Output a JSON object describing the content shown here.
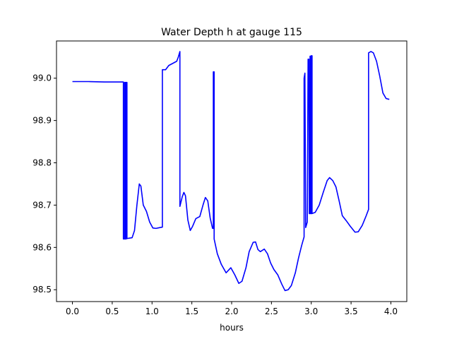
{
  "chart_data": {
    "type": "line",
    "title": "Water Depth h at gauge 115",
    "xlabel": "hours",
    "ylabel": "",
    "xlim": [
      -0.2,
      4.2
    ],
    "ylim": [
      98.472,
      99.088
    ],
    "x_ticks": [
      0.0,
      0.5,
      1.0,
      1.5,
      2.0,
      2.5,
      3.0,
      3.5,
      4.0
    ],
    "x_tick_labels": [
      "0.0",
      "0.5",
      "1.0",
      "1.5",
      "2.0",
      "2.5",
      "3.0",
      "3.5",
      "4.0"
    ],
    "y_ticks": [
      98.5,
      98.6,
      98.7,
      98.8,
      98.9,
      99.0
    ],
    "y_tick_labels": [
      "98.5",
      "98.6",
      "98.7",
      "98.8",
      "98.9",
      "99.0"
    ],
    "grid": false,
    "legend": "none",
    "series": [
      {
        "color": "#0000ff",
        "points": [
          [
            0.0,
            98.992
          ],
          [
            0.2,
            98.992
          ],
          [
            0.4,
            98.991
          ],
          [
            0.64,
            98.991
          ],
          [
            0.64,
            98.62
          ],
          [
            0.655,
            98.62
          ],
          [
            0.655,
            98.99
          ],
          [
            0.665,
            98.99
          ],
          [
            0.665,
            98.62
          ],
          [
            0.675,
            98.62
          ],
          [
            0.675,
            98.99
          ],
          [
            0.685,
            98.99
          ],
          [
            0.685,
            98.621
          ],
          [
            0.75,
            98.623
          ],
          [
            0.78,
            98.64
          ],
          [
            0.81,
            98.7
          ],
          [
            0.84,
            98.75
          ],
          [
            0.86,
            98.745
          ],
          [
            0.89,
            98.7
          ],
          [
            0.93,
            98.685
          ],
          [
            0.97,
            98.66
          ],
          [
            1.01,
            98.646
          ],
          [
            1.05,
            98.645
          ],
          [
            1.1,
            98.647
          ],
          [
            1.13,
            98.648
          ],
          [
            1.13,
            99.02
          ],
          [
            1.17,
            99.02
          ],
          [
            1.21,
            99.03
          ],
          [
            1.26,
            99.035
          ],
          [
            1.31,
            99.04
          ],
          [
            1.33,
            99.05
          ],
          [
            1.35,
            99.063
          ],
          [
            1.35,
            98.697
          ],
          [
            1.38,
            98.72
          ],
          [
            1.4,
            98.73
          ],
          [
            1.42,
            98.722
          ],
          [
            1.45,
            98.665
          ],
          [
            1.48,
            98.64
          ],
          [
            1.51,
            98.65
          ],
          [
            1.55,
            98.668
          ],
          [
            1.6,
            98.673
          ],
          [
            1.64,
            98.7
          ],
          [
            1.67,
            98.718
          ],
          [
            1.7,
            98.71
          ],
          [
            1.73,
            98.67
          ],
          [
            1.76,
            98.645
          ],
          [
            1.77,
            98.645
          ],
          [
            1.77,
            99.015
          ],
          [
            1.78,
            99.015
          ],
          [
            1.78,
            98.62
          ],
          [
            1.82,
            98.585
          ],
          [
            1.87,
            98.56
          ],
          [
            1.93,
            98.54
          ],
          [
            1.99,
            98.552
          ],
          [
            2.04,
            98.535
          ],
          [
            2.09,
            98.515
          ],
          [
            2.13,
            98.52
          ],
          [
            2.18,
            98.552
          ],
          [
            2.22,
            98.59
          ],
          [
            2.27,
            98.612
          ],
          [
            2.3,
            98.613
          ],
          [
            2.33,
            98.595
          ],
          [
            2.36,
            98.59
          ],
          [
            2.41,
            98.596
          ],
          [
            2.45,
            98.585
          ],
          [
            2.49,
            98.563
          ],
          [
            2.53,
            98.548
          ],
          [
            2.58,
            98.535
          ],
          [
            2.63,
            98.513
          ],
          [
            2.67,
            98.498
          ],
          [
            2.71,
            98.5
          ],
          [
            2.75,
            98.51
          ],
          [
            2.8,
            98.54
          ],
          [
            2.84,
            98.575
          ],
          [
            2.88,
            98.605
          ],
          [
            2.91,
            98.625
          ],
          [
            2.91,
            99.0
          ],
          [
            2.92,
            99.012
          ],
          [
            2.93,
            98.647
          ],
          [
            2.95,
            98.66
          ],
          [
            2.96,
            99.045
          ],
          [
            2.97,
            99.045
          ],
          [
            2.975,
            98.68
          ],
          [
            2.985,
            98.68
          ],
          [
            2.985,
            99.052
          ],
          [
            2.995,
            99.052
          ],
          [
            2.995,
            98.68
          ],
          [
            3.0,
            98.68
          ],
          [
            3.0,
            99.053
          ],
          [
            3.01,
            99.053
          ],
          [
            3.01,
            98.68
          ],
          [
            3.05,
            98.683
          ],
          [
            3.1,
            98.7
          ],
          [
            3.15,
            98.73
          ],
          [
            3.2,
            98.758
          ],
          [
            3.23,
            98.765
          ],
          [
            3.27,
            98.758
          ],
          [
            3.31,
            98.743
          ],
          [
            3.35,
            98.71
          ],
          [
            3.39,
            98.675
          ],
          [
            3.44,
            98.663
          ],
          [
            3.49,
            98.65
          ],
          [
            3.55,
            98.636
          ],
          [
            3.59,
            98.637
          ],
          [
            3.64,
            98.652
          ],
          [
            3.69,
            98.675
          ],
          [
            3.72,
            98.69
          ],
          [
            3.72,
            99.06
          ],
          [
            3.75,
            99.063
          ],
          [
            3.78,
            99.06
          ],
          [
            3.82,
            99.04
          ],
          [
            3.86,
            99.005
          ],
          [
            3.9,
            98.965
          ],
          [
            3.94,
            98.952
          ],
          [
            3.98,
            98.95
          ]
        ]
      }
    ]
  }
}
